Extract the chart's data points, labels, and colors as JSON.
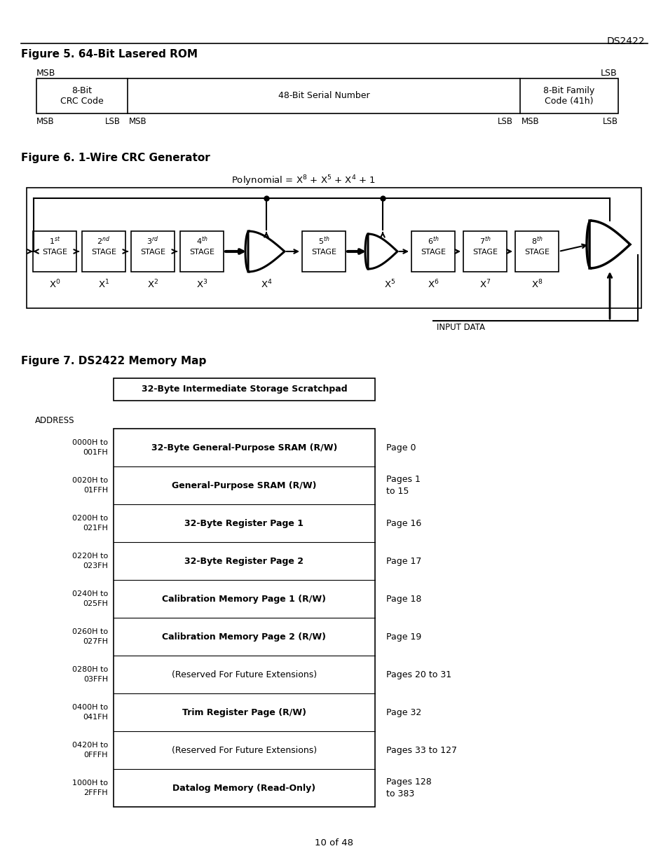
{
  "fig_width": 9.54,
  "fig_height": 12.35,
  "bg_color": "#ffffff",
  "header_text": "DS2422",
  "fig5_title": "Figure 5. 64-Bit Lasered ROM",
  "fig6_title": "Figure 6. 1-Wire CRC Generator",
  "fig7_title": "Figure 7. DS2422 Memory Map",
  "footer_text": "10 of 48",
  "memory_rows": [
    {
      "addr": "0000H to\n001FH",
      "label": "32-Byte General-Purpose SRAM (R/W)",
      "page": "Page 0",
      "bold": true
    },
    {
      "addr": "0020H to\n01FFH",
      "label": "General-Purpose SRAM (R/W)",
      "page": "Pages 1\nto 15",
      "bold": true
    },
    {
      "addr": "0200H to\n021FH",
      "label": "32-Byte Register Page 1",
      "page": "Page 16",
      "bold": true
    },
    {
      "addr": "0220H to\n023FH",
      "label": "32-Byte Register Page 2",
      "page": "Page 17",
      "bold": true
    },
    {
      "addr": "0240H to\n025FH",
      "label": "Calibration Memory Page 1 (R/W)",
      "page": "Page 18",
      "bold": true
    },
    {
      "addr": "0260H to\n027FH",
      "label": "Calibration Memory Page 2 (R/W)",
      "page": "Page 19",
      "bold": true
    },
    {
      "addr": "0280H to\n03FFH",
      "label": "(Reserved For Future Extensions)",
      "page": "Pages 20 to 31",
      "bold": false
    },
    {
      "addr": "0400H to\n041FH",
      "label": "Trim Register Page (R/W)",
      "page": "Page 32",
      "bold": true
    },
    {
      "addr": "0420H to\n0FFFH",
      "label": "(Reserved For Future Extensions)",
      "page": "Pages 33 to 127",
      "bold": false
    },
    {
      "addr": "1000H to\n2FFFH",
      "label": "Datalog Memory (Read-Only)",
      "page": "Pages 128\nto 383",
      "bold": true
    }
  ]
}
